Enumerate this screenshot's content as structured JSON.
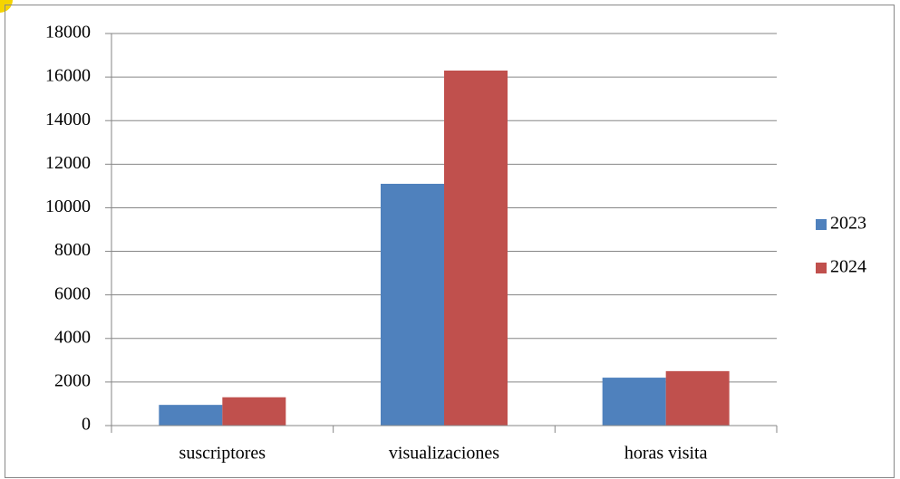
{
  "chart_data": {
    "type": "bar",
    "categories": [
      "suscriptores",
      "visualizaciones",
      "horas visita"
    ],
    "series": [
      {
        "name": "2023",
        "color": "#4f81bd",
        "values": [
          950,
          11100,
          2200
        ]
      },
      {
        "name": "2024",
        "color": "#c0504d",
        "values": [
          1300,
          16300,
          2500
        ]
      }
    ],
    "ylim": [
      0,
      18000
    ],
    "yticks": [
      0,
      2000,
      4000,
      6000,
      8000,
      10000,
      12000,
      14000,
      16000,
      18000
    ],
    "grid": true,
    "legend": "right"
  }
}
